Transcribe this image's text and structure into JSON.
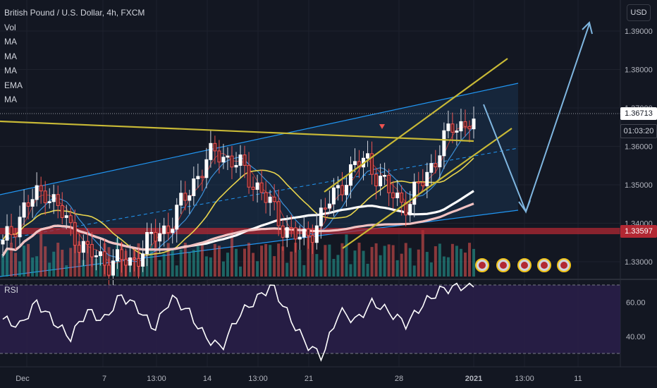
{
  "header": {
    "symbol_title": "British Pound / U.S. Dollar, 4h, FXCM",
    "indicators": [
      "Vol",
      "MA",
      "MA",
      "MA",
      "EMA",
      "MA"
    ]
  },
  "price_axis": {
    "currency": "USD",
    "last_price": "1.36713",
    "countdown": "01:03:20",
    "support_level": "1.33597"
  },
  "rsi_panel": {
    "label": "RSI"
  },
  "colors": {
    "background": "#131722",
    "channel_line": "#2196f3",
    "trend_line": "#c8b936",
    "support_band": "#b22833",
    "rsi_fill": "#2a1e4a",
    "forecast_arrow": "#7fb6e0",
    "up_candle": "#26a69a",
    "down_candle": "#ef5350"
  },
  "chart_data": [
    {
      "type": "candlestick",
      "title": "British Pound / U.S. Dollar, 4h, FXCM",
      "y_axis": {
        "ticks": [
          1.33,
          1.34,
          1.35,
          1.36,
          1.37,
          1.38,
          1.39
        ],
        "tick_labels": [
          "1.33000",
          "1.34000",
          "1.35000",
          "1.36000",
          "1.37000",
          "1.38000",
          "1.39000"
        ],
        "ylim": [
          1.322,
          1.397
        ]
      },
      "x_axis": {
        "tick_labels": [
          "Dec",
          "7",
          "13:00",
          "14",
          "13:00",
          "21",
          "28",
          "2021",
          "13:00",
          "11"
        ],
        "bold_ticks": [
          "2021"
        ]
      },
      "series_close_keypoints": [
        [
          "Dec",
          1.334
        ],
        [
          "Dec 3",
          1.344
        ],
        [
          "Dec 4",
          1.349
        ],
        [
          "Dec 7",
          1.34
        ],
        [
          "Dec 8",
          1.332
        ],
        [
          "Dec 10",
          1.33
        ],
        [
          "Dec 11",
          1.33
        ],
        [
          "Dec 14",
          1.336
        ],
        [
          "Dec 15",
          1.341
        ],
        [
          "Dec 16",
          1.352
        ],
        [
          "Dec 17",
          1.359
        ],
        [
          "Dec 18",
          1.355
        ],
        [
          "Dec 20",
          1.349
        ],
        [
          "Dec 21",
          1.34
        ],
        [
          "Dec 22",
          1.335
        ],
        [
          "Dec 23",
          1.343
        ],
        [
          "Dec 24",
          1.352
        ],
        [
          "Dec 26",
          1.357
        ],
        [
          "Dec 28",
          1.348
        ],
        [
          "Dec 29",
          1.345
        ],
        [
          "Dec 30",
          1.355
        ],
        [
          "Dec 31",
          1.365
        ],
        [
          "2021",
          1.3671
        ]
      ],
      "last_price": 1.36713,
      "horizontal_level": 1.33597,
      "forecast_path": [
        [
          "2021",
          1.372
        ],
        [
          "13:00",
          1.34
        ],
        [
          "11",
          1.392
        ]
      ]
    },
    {
      "type": "line",
      "title": "RSI",
      "y_axis": {
        "ticks": [
          40,
          60
        ],
        "tick_labels": [
          "40.00",
          "60.00"
        ],
        "bands": [
          30,
          70
        ]
      },
      "values": [
        50,
        46,
        60,
        49,
        39,
        55,
        49,
        64,
        57,
        44,
        63,
        55,
        40,
        33,
        52,
        61,
        70,
        52,
        36,
        28,
        55,
        49,
        60,
        54,
        47,
        59,
        67,
        69,
        70
      ]
    }
  ]
}
